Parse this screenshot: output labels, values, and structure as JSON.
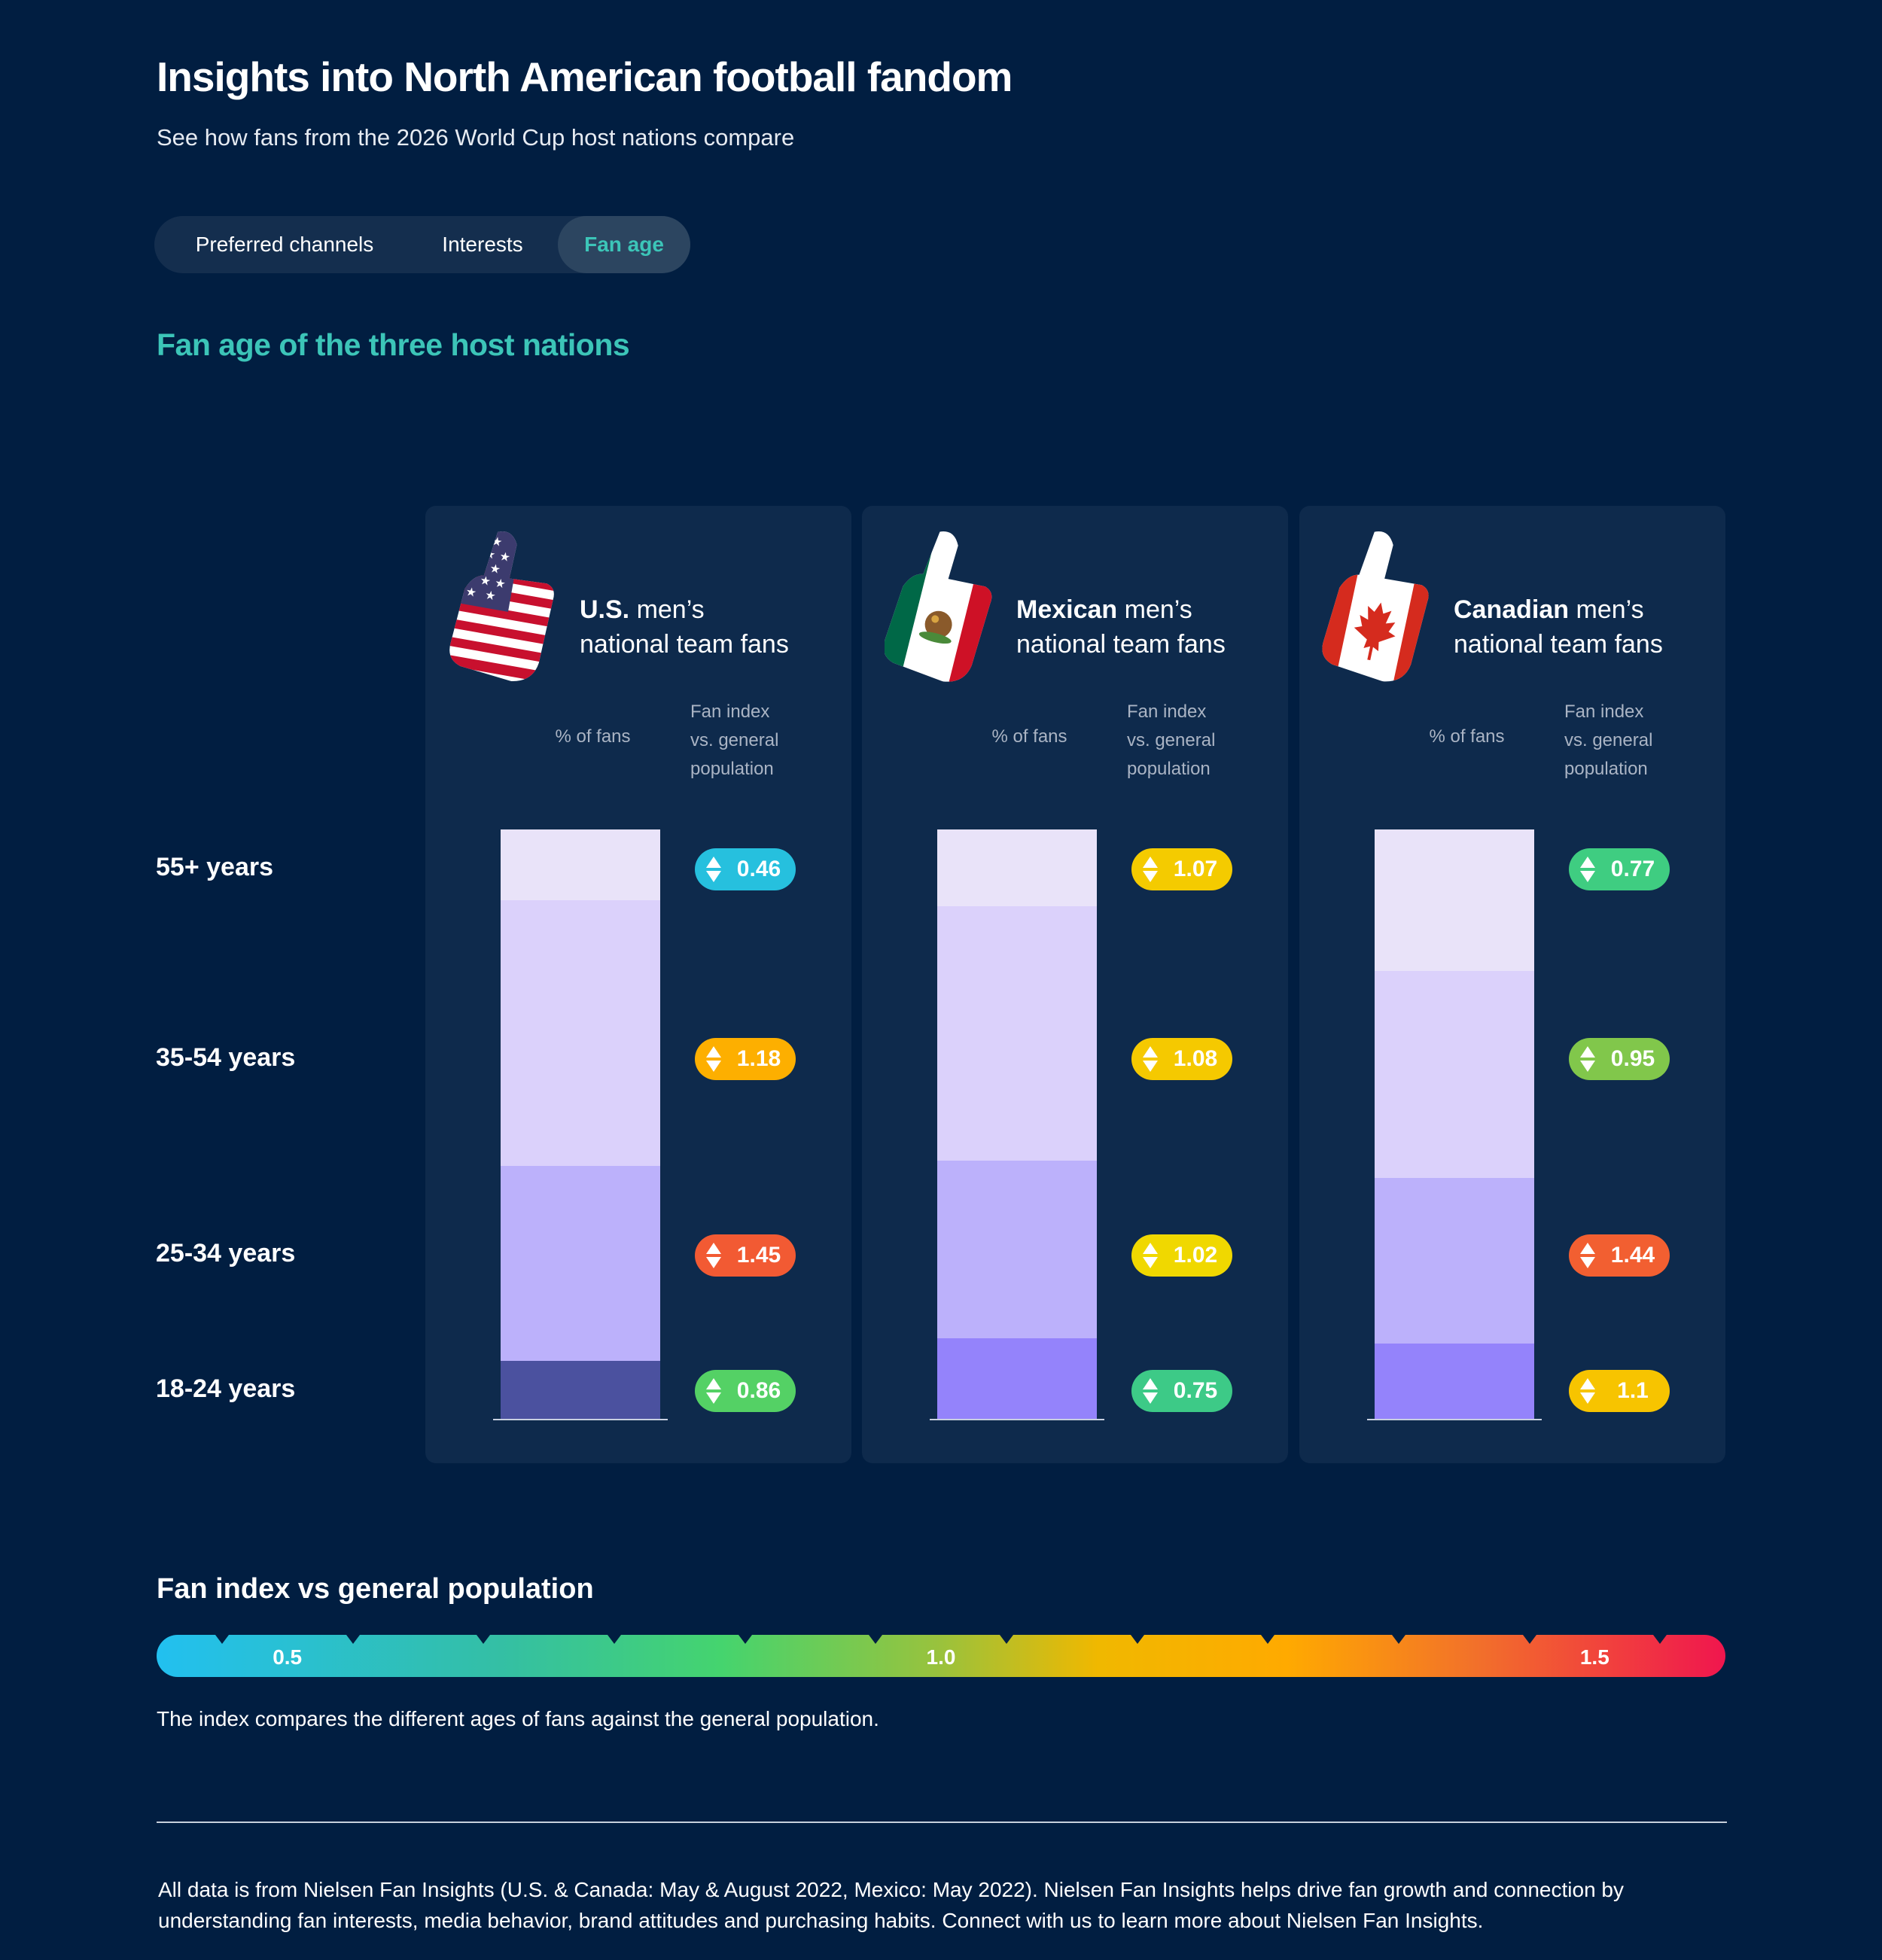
{
  "header": {
    "title": "Insights into North American football fandom",
    "subtitle": "See how fans from the 2026 World Cup host nations compare"
  },
  "tabs": [
    {
      "label": "Preferred channels"
    },
    {
      "label": "Interests"
    },
    {
      "label": "Fan age",
      "active": true
    }
  ],
  "section_title": "Fan age of the three host nations",
  "age_groups": [
    "55+ years",
    "35-54 years",
    "25-34 years",
    "18-24 years"
  ],
  "panels": [
    {
      "name_bold": "U.S.",
      "name_rest": " men’s",
      "line2": "national team fans",
      "pct_label": "% of fans",
      "idx_label": [
        "Fan index",
        "vs. general",
        "population"
      ]
    },
    {
      "name_bold": "Mexican",
      "name_rest": " men’s",
      "line2": "national team fans",
      "pct_label": "% of fans",
      "idx_label": [
        "Fan index",
        "vs. general",
        "population"
      ]
    },
    {
      "name_bold": "Canadian",
      "name_rest": " men’s",
      "line2": "national team fans",
      "pct_label": "% of fans",
      "idx_label": [
        "Fan index",
        "vs. general",
        "population"
      ]
    }
  ],
  "colors": {
    "seg_55": "#e9e3f9",
    "seg_35": "#dbd1fb",
    "seg_25": "#bcb1fb",
    "seg_18_us": "#4b519f",
    "seg_18": "#9483fb",
    "panel_bg": "#0e2a4c",
    "page_bg": "#011e41",
    "accent": "#3cc5b8"
  },
  "chart_data": {
    "type": "bar",
    "stacked": true,
    "categories": [
      "U.S. men’s national team fans",
      "Mexican men’s national team fans",
      "Canadian men’s national team fans"
    ],
    "series": [
      {
        "name": "18-24 years",
        "pct_of_fans": [
          10,
          14,
          13
        ],
        "fan_index": [
          0.86,
          0.75,
          1.1
        ]
      },
      {
        "name": "25-34 years",
        "pct_of_fans": [
          33,
          30,
          28
        ],
        "fan_index": [
          1.45,
          1.02,
          1.44
        ]
      },
      {
        "name": "35-54 years",
        "pct_of_fans": [
          45,
          43,
          35
        ],
        "fan_index": [
          1.18,
          1.08,
          0.95
        ]
      },
      {
        "name": "55+ years",
        "pct_of_fans": [
          12,
          13,
          24
        ],
        "fan_index": [
          0.46,
          1.07,
          0.77
        ]
      }
    ],
    "badge_text": [
      [
        "0.46",
        "1.18",
        "1.45",
        "0.86"
      ],
      [
        "1.07",
        "1.08",
        "1.02",
        "0.75"
      ],
      [
        "0.77",
        "0.95",
        "1.44",
        "1.1"
      ]
    ],
    "xlabel": "% of fans",
    "ylabel": "Fan index vs. general population",
    "ylim": [
      0,
      100
    ],
    "index_scale": {
      "min": 0.4,
      "max": 1.6,
      "labels": [
        "0.5",
        "1.0",
        "1.5"
      ],
      "label_values": [
        0.5,
        1.0,
        1.5
      ]
    }
  },
  "legend": {
    "title": "Fan index vs general population",
    "note": "The index compares the different ages of fans against the general population."
  },
  "footer": "All data is from Nielsen Fan Insights (U.S. & Canada: May & August 2022, Mexico: May 2022). Nielsen Fan Insights helps drive fan growth and connection by understanding fan interests, media behavior, brand attitudes and purchasing habits. Connect with us to learn more about Nielsen Fan Insights."
}
